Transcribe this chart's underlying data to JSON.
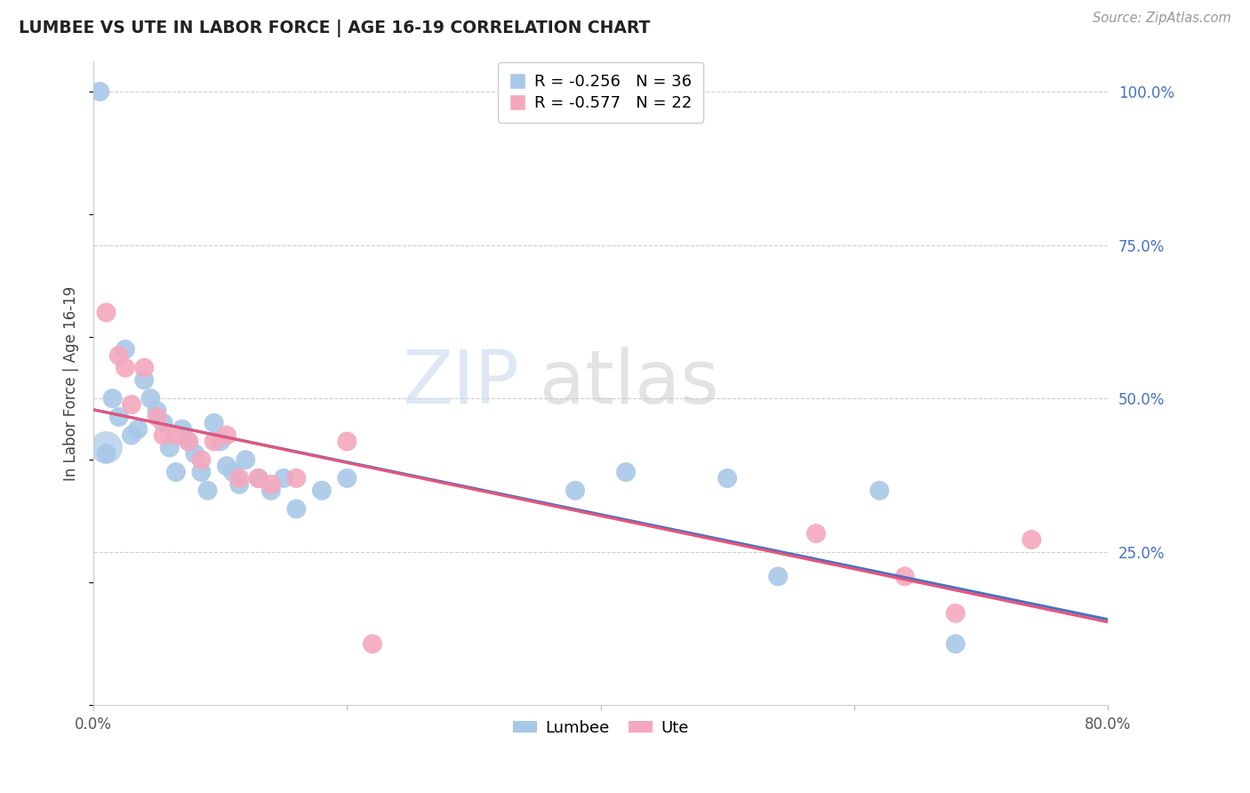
{
  "title": "LUMBEE VS UTE IN LABOR FORCE | AGE 16-19 CORRELATION CHART",
  "source": "Source: ZipAtlas.com",
  "ylabel": "In Labor Force | Age 16-19",
  "xlim": [
    0.0,
    0.8
  ],
  "ylim": [
    0.0,
    1.05
  ],
  "xtick_positions": [
    0.0,
    0.2,
    0.4,
    0.6,
    0.8
  ],
  "xtick_labels": [
    "0.0%",
    "",
    "",
    "",
    "80.0%"
  ],
  "ytick_vals_right": [
    1.0,
    0.75,
    0.5,
    0.25
  ],
  "ytick_labels_right": [
    "100.0%",
    "75.0%",
    "50.0%",
    "25.0%"
  ],
  "lumbee_R": -0.256,
  "lumbee_N": 36,
  "ute_R": -0.577,
  "ute_N": 22,
  "lumbee_color": "#a8c8e8",
  "ute_color": "#f4a8be",
  "lumbee_line_color": "#4472c4",
  "ute_line_color": "#e8547a",
  "lumbee_x": [
    0.005,
    0.01,
    0.015,
    0.02,
    0.025,
    0.03,
    0.035,
    0.04,
    0.045,
    0.05,
    0.055,
    0.06,
    0.065,
    0.07,
    0.075,
    0.08,
    0.085,
    0.09,
    0.095,
    0.1,
    0.105,
    0.11,
    0.115,
    0.12,
    0.13,
    0.14,
    0.15,
    0.16,
    0.18,
    0.2,
    0.38,
    0.42,
    0.5,
    0.54,
    0.62,
    0.68
  ],
  "lumbee_y": [
    1.0,
    0.41,
    0.5,
    0.47,
    0.58,
    0.44,
    0.45,
    0.53,
    0.5,
    0.48,
    0.46,
    0.42,
    0.38,
    0.45,
    0.43,
    0.41,
    0.38,
    0.35,
    0.46,
    0.43,
    0.39,
    0.38,
    0.36,
    0.4,
    0.37,
    0.35,
    0.37,
    0.32,
    0.35,
    0.37,
    0.35,
    0.38,
    0.37,
    0.21,
    0.35,
    0.1
  ],
  "ute_x": [
    0.01,
    0.02,
    0.025,
    0.03,
    0.04,
    0.05,
    0.055,
    0.065,
    0.075,
    0.085,
    0.095,
    0.105,
    0.115,
    0.13,
    0.14,
    0.16,
    0.2,
    0.22,
    0.57,
    0.64,
    0.68,
    0.74
  ],
  "ute_y": [
    0.64,
    0.57,
    0.55,
    0.49,
    0.55,
    0.47,
    0.44,
    0.44,
    0.43,
    0.4,
    0.43,
    0.44,
    0.37,
    0.37,
    0.36,
    0.37,
    0.43,
    0.1,
    0.28,
    0.21,
    0.15,
    0.27
  ]
}
